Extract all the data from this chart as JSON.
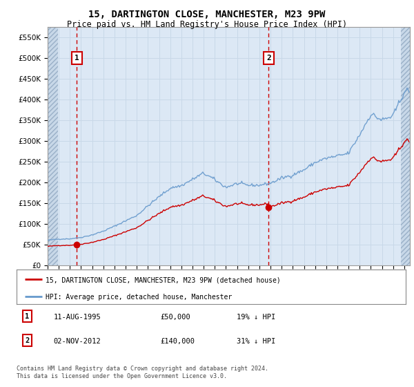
{
  "title": "15, DARTINGTON CLOSE, MANCHESTER, M23 9PW",
  "subtitle": "Price paid vs. HM Land Registry's House Price Index (HPI)",
  "legend_line1": "15, DARTINGTON CLOSE, MANCHESTER, M23 9PW (detached house)",
  "legend_line2": "HPI: Average price, detached house, Manchester",
  "annotation1_date": "11-AUG-1995",
  "annotation1_price": "£50,000",
  "annotation1_hpi": "19% ↓ HPI",
  "annotation2_date": "02-NOV-2012",
  "annotation2_price": "£140,000",
  "annotation2_hpi": "31% ↓ HPI",
  "footer": "Contains HM Land Registry data © Crown copyright and database right 2024.\nThis data is licensed under the Open Government Licence v3.0.",
  "hpi_color": "#6699cc",
  "price_color": "#cc0000",
  "marker_color": "#cc0000",
  "vline_color": "#cc0000",
  "grid_color": "#c8d8e8",
  "ylim": [
    0,
    575000
  ],
  "yticks": [
    0,
    50000,
    100000,
    150000,
    200000,
    250000,
    300000,
    350000,
    400000,
    450000,
    500000,
    550000
  ],
  "plot_bg": "#dce8f5",
  "sale1_x": 1995.62,
  "sale1_y": 50000,
  "sale2_x": 2012.84,
  "sale2_y": 140000,
  "xmin": 1993.0,
  "xmax": 2025.5
}
